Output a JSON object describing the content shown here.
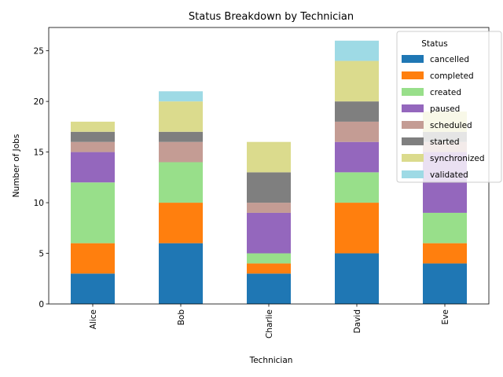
{
  "chart_data": {
    "type": "bar",
    "stacked": true,
    "title": "Status Breakdown by Technician",
    "xlabel": "Technician",
    "ylabel": "Number of Jobs",
    "ylim": [
      0,
      27.3
    ],
    "yticks": [
      0,
      5,
      10,
      15,
      20,
      25
    ],
    "grid": false,
    "legend_placement": "top-right",
    "legend_title": "Status",
    "categories": [
      "Alice",
      "Bob",
      "Charlie",
      "David",
      "Eve"
    ],
    "series": [
      {
        "name": "cancelled",
        "color": "#1f77b4",
        "values": [
          3,
          6,
          3,
          5,
          4
        ]
      },
      {
        "name": "completed",
        "color": "#ff7f0e",
        "values": [
          3,
          4,
          1,
          5,
          2
        ]
      },
      {
        "name": "created",
        "color": "#98df8a",
        "values": [
          6,
          4,
          1,
          3,
          3
        ]
      },
      {
        "name": "paused",
        "color": "#9467bd",
        "values": [
          3,
          0,
          4,
          3,
          6
        ]
      },
      {
        "name": "scheduled",
        "color": "#c49c94",
        "values": [
          1,
          2,
          1,
          2,
          1
        ]
      },
      {
        "name": "started",
        "color": "#7f7f7f",
        "values": [
          1,
          1,
          3,
          2,
          1
        ]
      },
      {
        "name": "synchronized",
        "color": "#dbdb8d",
        "values": [
          1,
          3,
          3,
          4,
          2
        ]
      },
      {
        "name": "validated",
        "color": "#9edae5",
        "values": [
          0,
          1,
          0,
          2,
          0
        ]
      }
    ]
  }
}
